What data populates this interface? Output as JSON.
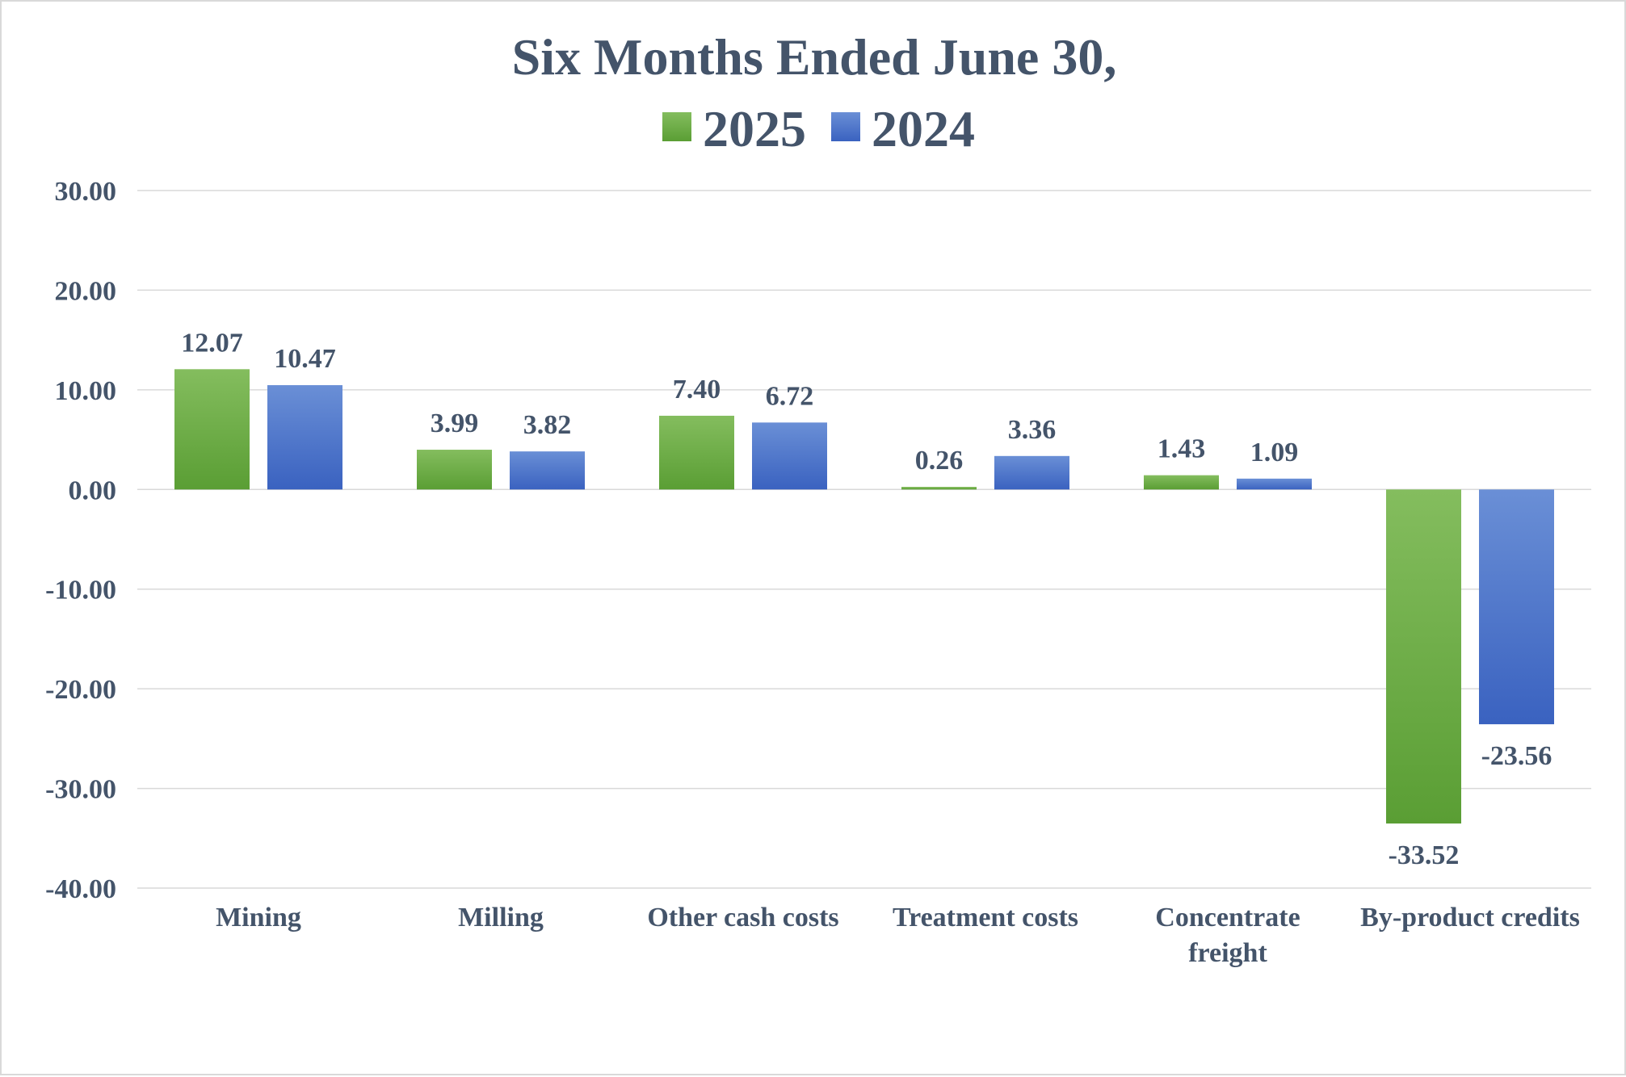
{
  "chart_data": {
    "type": "bar",
    "title": "Six Months Ended June 30,",
    "xlabel": "",
    "ylabel": "",
    "ylim": [
      -40,
      30
    ],
    "yticks": [
      "30.00",
      "20.00",
      "10.00",
      "0.00",
      "-10.00",
      "-20.00",
      "-30.00",
      "-40.00"
    ],
    "ytick_values": [
      30,
      20,
      10,
      0,
      -10,
      -20,
      -30,
      -40
    ],
    "grid": true,
    "legend_position": "top-center",
    "categories": [
      [
        "Mining"
      ],
      [
        "Milling"
      ],
      [
        "Other cash costs"
      ],
      [
        "Treatment costs"
      ],
      [
        "Concentrate",
        "freight"
      ],
      [
        "By-product credits"
      ]
    ],
    "series": [
      {
        "name": "2025",
        "color_top": "#84bd5e",
        "color_bottom": "#5a9e34",
        "values": [
          12.07,
          3.99,
          7.4,
          0.26,
          1.43,
          -33.52
        ],
        "labels": [
          "12.07",
          "3.99",
          "7.40",
          "0.26",
          "1.43",
          "-33.52"
        ]
      },
      {
        "name": "2024",
        "color_top": "#6a8fd6",
        "color_bottom": "#3a62c0",
        "values": [
          10.47,
          3.82,
          6.72,
          3.36,
          1.09,
          -23.56
        ],
        "labels": [
          "10.47",
          "3.82",
          "6.72",
          "3.36",
          "1.09",
          "-23.56"
        ]
      }
    ]
  }
}
